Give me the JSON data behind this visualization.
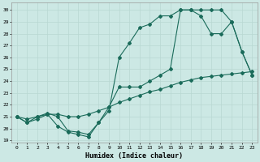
{
  "xlabel": "Humidex (Indice chaleur)",
  "bg_color": "#cce8e4",
  "line_color": "#1a6b5a",
  "grid_color": "#b8d8d2",
  "xlim": [
    -0.5,
    23.5
  ],
  "ylim": [
    18.8,
    30.6
  ],
  "yticks": [
    19,
    20,
    21,
    22,
    23,
    24,
    25,
    26,
    27,
    28,
    29,
    30
  ],
  "xticks": [
    0,
    1,
    2,
    3,
    4,
    5,
    6,
    7,
    8,
    9,
    10,
    11,
    12,
    13,
    14,
    15,
    16,
    17,
    18,
    19,
    20,
    21,
    22,
    23
  ],
  "line1_x": [
    0,
    1,
    2,
    3,
    4,
    5,
    6,
    7,
    8,
    9,
    10,
    11,
    12,
    13,
    14,
    15,
    16,
    17,
    18,
    19,
    20,
    21,
    22,
    23
  ],
  "line1_y": [
    21.0,
    20.5,
    20.8,
    21.2,
    21.2,
    21.0,
    21.0,
    21.2,
    21.5,
    21.8,
    22.2,
    22.5,
    22.8,
    23.1,
    23.3,
    23.6,
    23.9,
    24.1,
    24.3,
    24.4,
    24.5,
    24.6,
    24.7,
    24.8
  ],
  "line2_x": [
    0,
    1,
    2,
    3,
    4,
    5,
    6,
    7,
    8,
    9,
    10,
    11,
    12,
    13,
    14,
    15,
    16,
    17,
    18,
    19,
    20,
    21,
    22,
    23
  ],
  "line2_y": [
    21.0,
    20.5,
    21.0,
    21.2,
    20.2,
    19.7,
    19.5,
    19.3,
    20.5,
    21.5,
    26.0,
    27.2,
    28.5,
    28.8,
    29.5,
    29.5,
    30.0,
    30.0,
    29.5,
    28.0,
    28.0,
    29.0,
    26.5,
    24.5
  ],
  "line3_x": [
    0,
    1,
    2,
    3,
    4,
    5,
    6,
    7,
    8,
    9,
    10,
    11,
    12,
    13,
    14,
    15,
    16,
    17,
    18,
    19,
    20,
    21,
    22,
    23
  ],
  "line3_y": [
    21.0,
    20.8,
    21.0,
    21.3,
    21.0,
    19.8,
    19.7,
    19.5,
    20.5,
    21.8,
    23.5,
    23.5,
    23.5,
    24.0,
    24.5,
    25.0,
    30.0,
    30.0,
    30.0,
    30.0,
    30.0,
    29.0,
    26.5,
    24.5
  ]
}
